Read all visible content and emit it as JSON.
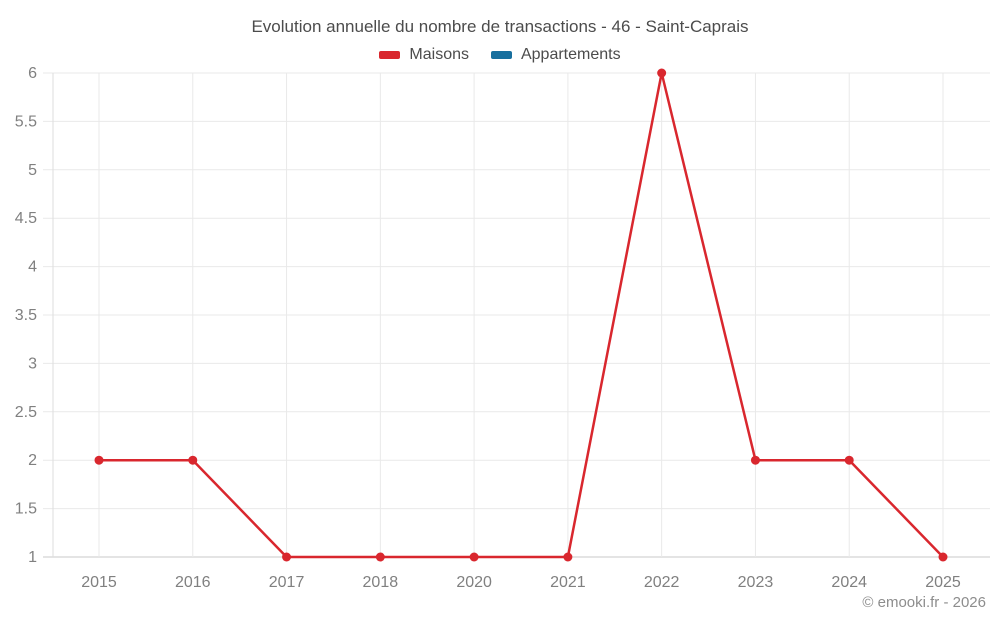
{
  "chart": {
    "title": "Evolution annuelle du nombre de transactions - 46 - Saint-Caprais",
    "copyright": "© emooki.fr - 2026"
  },
  "chart_data": {
    "type": "line",
    "title": "Evolution annuelle du nombre de transactions - 46 - Saint-Caprais",
    "categories": [
      "2015",
      "2016",
      "2017",
      "2018",
      "2020",
      "2021",
      "2022",
      "2023",
      "2024",
      "2025"
    ],
    "series": [
      {
        "name": "Maisons",
        "color": "#d9272e",
        "values": [
          2,
          2,
          1,
          1,
          1,
          1,
          6,
          2,
          2,
          1
        ]
      },
      {
        "name": "Appartements",
        "color": "#176f9e",
        "values": []
      }
    ],
    "xlabel": "",
    "ylabel": "",
    "ylim": [
      1,
      6
    ],
    "yticks": [
      "6",
      "5.5",
      "5",
      "4.5",
      "4",
      "3.5",
      "3",
      "2.5",
      "2",
      "1.5",
      "1"
    ],
    "grid": true,
    "legend_position": "top",
    "colors": {
      "gridline": "#e9e9e9",
      "axis_line": "#c9c9c9",
      "tick_label": "#808080"
    }
  }
}
